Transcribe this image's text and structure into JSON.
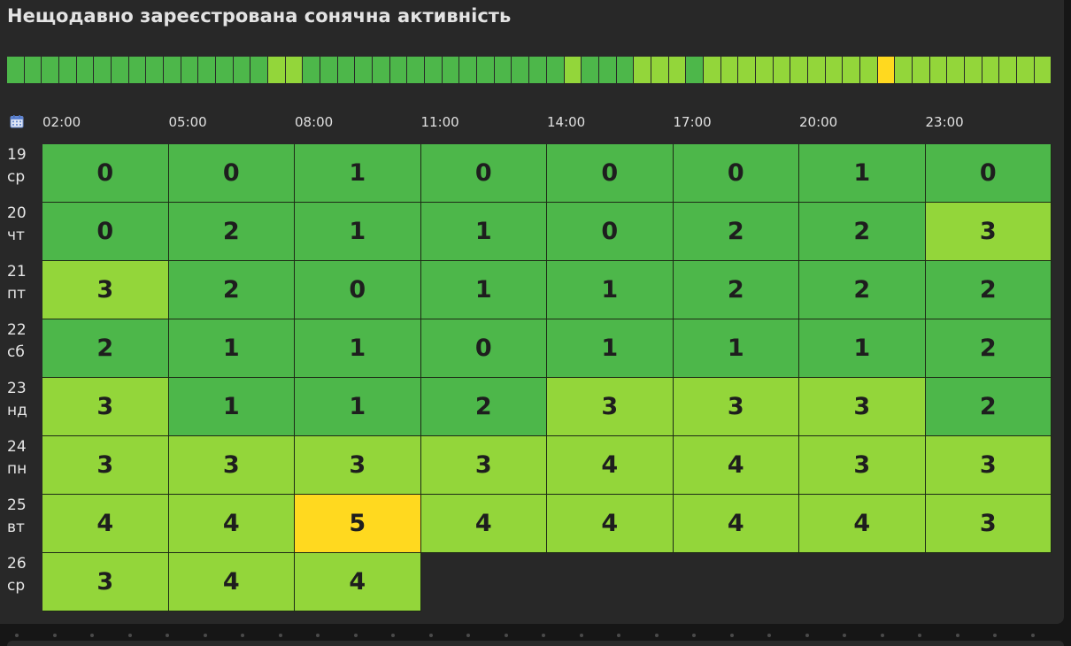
{
  "title": "Нещодавно зареєстрована сонячна активність",
  "colors": {
    "0": "#4db74a",
    "1": "#4db74a",
    "2": "#4db74a",
    "3": "#93d63a",
    "4": "#93d63a",
    "5": "#ffd91f"
  },
  "strip": {
    "values": [
      1,
      1,
      1,
      1,
      1,
      1,
      1,
      1,
      1,
      1,
      1,
      1,
      1,
      1,
      1,
      3,
      3,
      1,
      1,
      1,
      1,
      1,
      1,
      1,
      1,
      1,
      1,
      1,
      1,
      1,
      1,
      1,
      3,
      2,
      2,
      2,
      3,
      3,
      3,
      2,
      3,
      3,
      3,
      3,
      3,
      3,
      3,
      3,
      3,
      3,
      5,
      3,
      3,
      3,
      3,
      3,
      3,
      3,
      3,
      3
    ]
  },
  "calendar_icon": "calendar-icon",
  "hours": [
    "02:00",
    "05:00",
    "08:00",
    "11:00",
    "14:00",
    "17:00",
    "20:00",
    "23:00"
  ],
  "days": [
    {
      "day": "19",
      "weekday": "ср",
      "values": [
        0,
        0,
        1,
        0,
        0,
        0,
        1,
        0
      ]
    },
    {
      "day": "20",
      "weekday": "чт",
      "values": [
        0,
        2,
        1,
        1,
        0,
        2,
        2,
        3
      ]
    },
    {
      "day": "21",
      "weekday": "пт",
      "values": [
        3,
        2,
        0,
        1,
        1,
        2,
        2,
        2
      ]
    },
    {
      "day": "22",
      "weekday": "сб",
      "values": [
        2,
        1,
        1,
        0,
        1,
        1,
        1,
        2
      ]
    },
    {
      "day": "23",
      "weekday": "нд",
      "values": [
        3,
        1,
        1,
        2,
        3,
        3,
        3,
        2
      ]
    },
    {
      "day": "24",
      "weekday": "пн",
      "values": [
        3,
        3,
        3,
        3,
        4,
        4,
        3,
        3
      ]
    },
    {
      "day": "25",
      "weekday": "вт",
      "values": [
        4,
        4,
        5,
        4,
        4,
        4,
        4,
        3
      ]
    },
    {
      "day": "26",
      "weekday": "ср",
      "values": [
        3,
        4,
        4
      ]
    }
  ]
}
